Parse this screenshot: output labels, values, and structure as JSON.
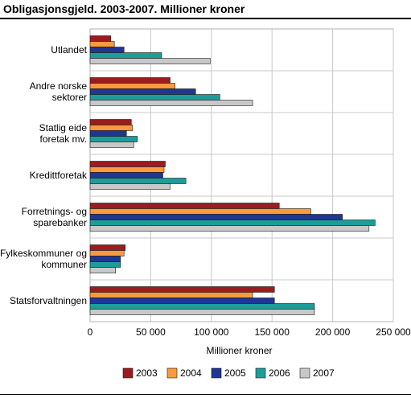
{
  "chart_data": {
    "type": "bar",
    "orientation": "horizontal",
    "title": "Obligasjonsgjeld. 2003-2007. Millioner kroner",
    "xlabel": "Millioner kroner",
    "ylabel": "",
    "xlim": [
      0,
      250000
    ],
    "x_ticks": [
      0,
      50000,
      100000,
      150000,
      200000,
      250000
    ],
    "x_tick_labels": [
      "0",
      "50 000",
      "100 000",
      "150 000",
      "200 000",
      "250 000"
    ],
    "grid": "vertical",
    "legend_position": "bottom",
    "categories": [
      [
        "Utlandet"
      ],
      [
        "Andre norske",
        "sektorer"
      ],
      [
        "Statlig eide",
        "foretak mv."
      ],
      [
        "Kredittforetak"
      ],
      [
        "Forretnings- og",
        "sparebanker"
      ],
      [
        "Fylkeskommuner og",
        "kommuner"
      ],
      [
        "Statsforvaltningen"
      ]
    ],
    "series": [
      {
        "name": "2003",
        "color": "#9b1c1f",
        "values": [
          17000,
          66000,
          34000,
          62000,
          156000,
          29000,
          152000
        ]
      },
      {
        "name": "2004",
        "color": "#f89a3d",
        "values": [
          20000,
          70000,
          35000,
          61000,
          182000,
          28000,
          134000
        ]
      },
      {
        "name": "2005",
        "color": "#1f3694",
        "values": [
          28000,
          87000,
          30000,
          60000,
          208000,
          25000,
          152000
        ]
      },
      {
        "name": "2006",
        "color": "#1e9c9a",
        "values": [
          59000,
          107000,
          39000,
          79000,
          235000,
          25000,
          185000
        ]
      },
      {
        "name": "2007",
        "color": "#c8c8c8",
        "values": [
          99000,
          134000,
          36000,
          66000,
          230000,
          21000,
          185000
        ]
      }
    ]
  }
}
